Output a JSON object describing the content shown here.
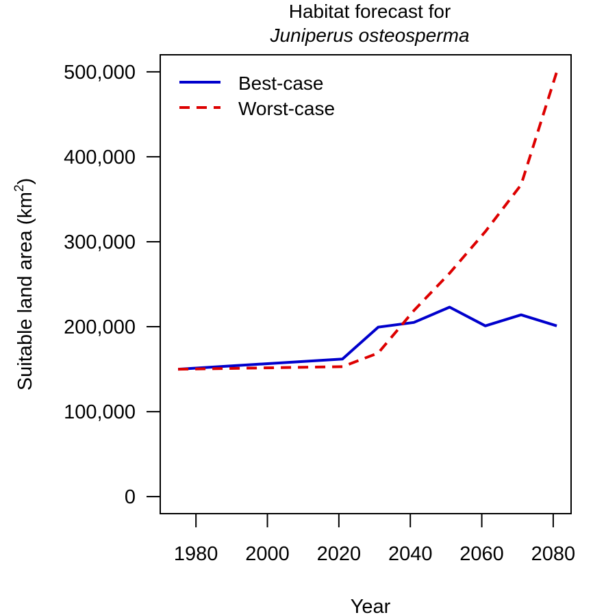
{
  "chart_data": {
    "type": "line",
    "title_line1": "Habitat forecast for",
    "title_line2": "Juniperus osteosperma",
    "xlabel": "Year",
    "ylabel_main": "Suitable land area (km",
    "ylabel_sup": "2",
    "ylabel_close": ")",
    "xlim": [
      1970,
      2085
    ],
    "ylim": [
      -20000,
      520000
    ],
    "x_ticks": [
      1980,
      2000,
      2020,
      2040,
      2060,
      2080
    ],
    "y_ticks": [
      0,
      100000,
      200000,
      300000,
      400000,
      500000
    ],
    "x_tick_labels": [
      "1980",
      "2000",
      "2020",
      "2040",
      "2060",
      "2080"
    ],
    "y_tick_labels": [
      "0",
      "100,000",
      "200,000",
      "300,000",
      "400,000",
      "500,000"
    ],
    "grid": false,
    "legend_position": "top-left",
    "series": [
      {
        "name": "Best-case",
        "color": "#0000CC",
        "style": "solid",
        "x": [
          1975,
          2021,
          2031,
          2041,
          2051,
          2061,
          2071,
          2081
        ],
        "y": [
          150000,
          162000,
          199500,
          205000,
          223000,
          201000,
          214000,
          201000
        ]
      },
      {
        "name": "Worst-case",
        "color": "#DD0000",
        "style": "dashed",
        "x": [
          1975,
          2021,
          2031,
          2041,
          2051,
          2061,
          2071,
          2081
        ],
        "y": [
          150000,
          153000,
          169000,
          219000,
          263000,
          312000,
          367000,
          500000
        ]
      }
    ]
  }
}
